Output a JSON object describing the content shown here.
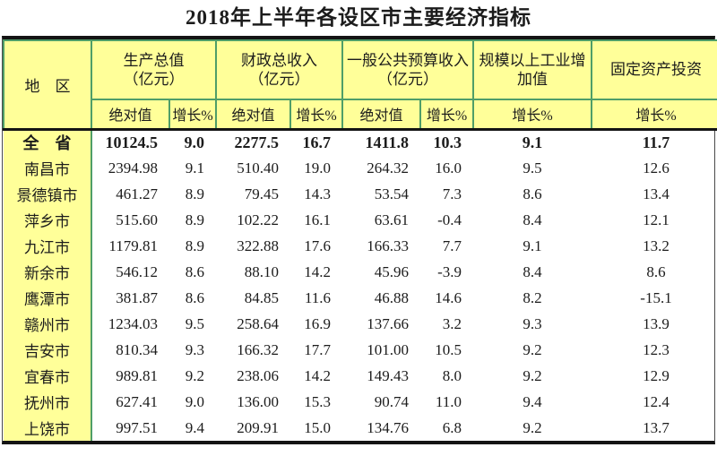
{
  "title": "2018年上半年各设区市主要经济指标",
  "colors": {
    "header_bg": "#ffff99",
    "grid_green": "#4f9e68",
    "rule_black": "#141414"
  },
  "table": {
    "region_header": "地　区",
    "groups": [
      {
        "label": "生产总值",
        "unit": "（亿元）"
      },
      {
        "label": "财政总收入",
        "unit": "（亿元）"
      },
      {
        "label": "一般公共预算收入",
        "unit": "（亿元）"
      },
      {
        "label": "规模以上工业增加值",
        "unit": ""
      },
      {
        "label": "固定资产投资",
        "unit": ""
      }
    ],
    "sub_labels": [
      "绝对值",
      "增长%",
      "绝对值",
      "增长%",
      "绝对值",
      "增长%",
      "增长%",
      "增长%"
    ]
  },
  "chart_data": {
    "type": "table",
    "title": "2018年上半年各设区市主要经济指标",
    "columns": [
      "地区",
      "生产总值（亿元）绝对值",
      "生产总值 增长%",
      "财政总收入（亿元）绝对值",
      "财政总收入 增长%",
      "一般公共预算收入（亿元）绝对值",
      "一般公共预算收入 增长%",
      "规模以上工业增加值 增长%",
      "固定资产投资 增长%"
    ],
    "bold_rows": [
      0
    ],
    "rows": [
      [
        "全　省",
        "10124.5",
        "9.0",
        "2277.5",
        "16.7",
        "1411.8",
        "10.3",
        "9.1",
        "11.7"
      ],
      [
        "南昌市",
        "2394.98",
        "9.1",
        "510.40",
        "19.0",
        "264.32",
        "16.0",
        "9.5",
        "12.6"
      ],
      [
        "景德镇市",
        "461.27",
        "8.9",
        "79.45",
        "14.3",
        "53.54",
        "7.3",
        "8.6",
        "13.4"
      ],
      [
        "萍乡市",
        "515.60",
        "8.9",
        "102.22",
        "16.1",
        "63.61",
        "-0.4",
        "8.4",
        "12.1"
      ],
      [
        "九江市",
        "1179.81",
        "8.9",
        "322.88",
        "17.6",
        "166.33",
        "7.7",
        "9.1",
        "13.2"
      ],
      [
        "新余市",
        "546.12",
        "8.6",
        "88.10",
        "14.2",
        "45.96",
        "-3.9",
        "8.4",
        "8.6"
      ],
      [
        "鹰潭市",
        "381.87",
        "8.6",
        "84.85",
        "11.6",
        "46.88",
        "14.6",
        "8.2",
        "-15.1"
      ],
      [
        "赣州市",
        "1234.03",
        "9.5",
        "258.64",
        "16.9",
        "137.66",
        "3.2",
        "9.3",
        "13.9"
      ],
      [
        "吉安市",
        "810.34",
        "9.3",
        "166.32",
        "17.7",
        "101.00",
        "10.5",
        "9.2",
        "12.3"
      ],
      [
        "宜春市",
        "989.81",
        "9.2",
        "238.06",
        "14.2",
        "149.43",
        "8.0",
        "9.2",
        "12.9"
      ],
      [
        "抚州市",
        "627.41",
        "9.0",
        "136.00",
        "15.3",
        "90.74",
        "11.0",
        "9.4",
        "12.4"
      ],
      [
        "上饶市",
        "997.51",
        "9.4",
        "209.91",
        "15.0",
        "134.76",
        "6.8",
        "9.2",
        "13.7"
      ]
    ]
  }
}
